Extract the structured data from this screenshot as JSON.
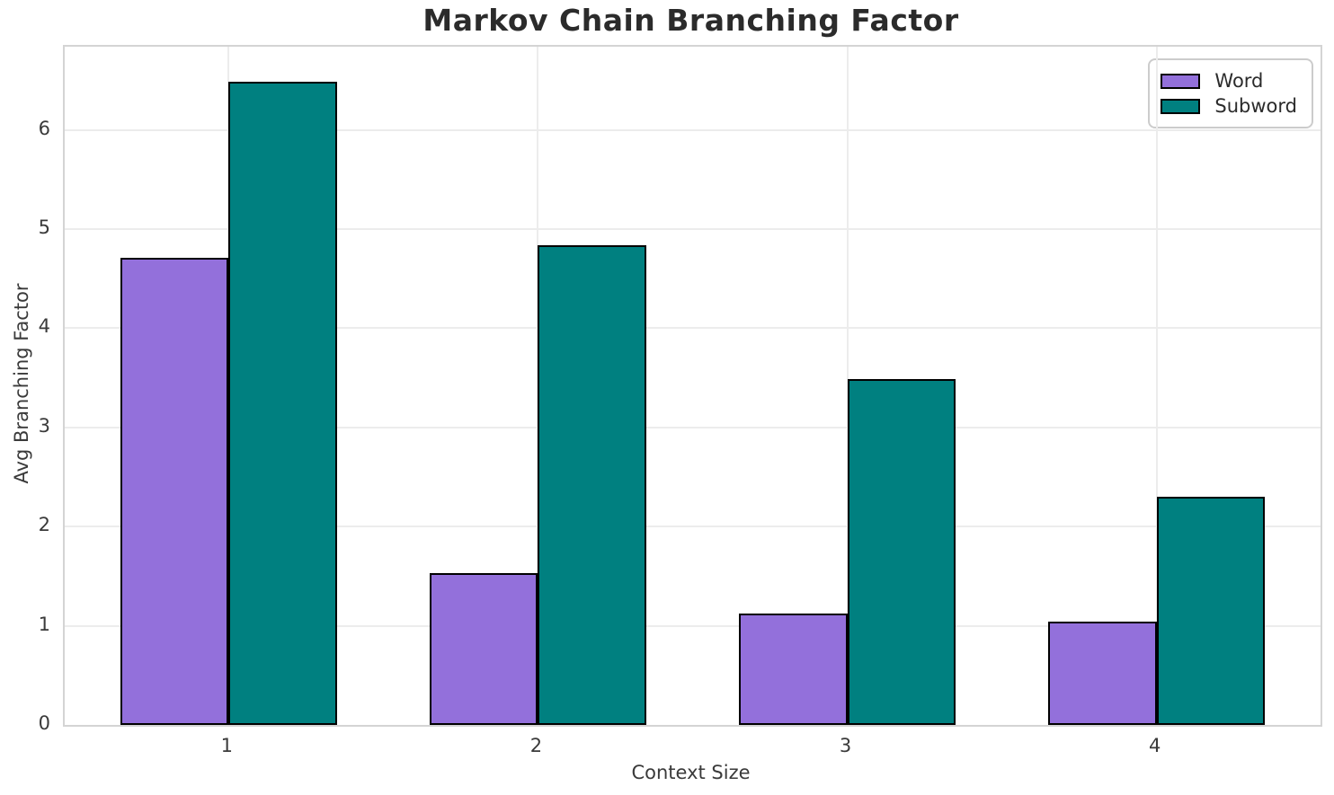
{
  "chart_data": {
    "type": "bar",
    "title": "Markov Chain Branching Factor",
    "xlabel": "Context Size",
    "ylabel": "Avg Branching Factor",
    "categories": [
      "1",
      "2",
      "3",
      "4"
    ],
    "series": [
      {
        "name": "Word",
        "color": "#9370DB",
        "values": [
          4.71,
          1.53,
          1.12,
          1.04
        ]
      },
      {
        "name": "Subword",
        "color": "#008080",
        "values": [
          6.49,
          4.84,
          3.49,
          2.3
        ]
      }
    ],
    "bar_width": 0.35,
    "bar_edge_color": "#000000",
    "xlim": [
      -0.53,
      3.53
    ],
    "ylim": [
      0,
      6.84
    ],
    "yticks": [
      0,
      1,
      2,
      3,
      4,
      5,
      6
    ],
    "grid": "both",
    "grid_color": "#ececec",
    "frame_color": "#d4d4d4",
    "legend": {
      "position": "upper-right",
      "items": [
        "Word",
        "Subword"
      ]
    }
  }
}
